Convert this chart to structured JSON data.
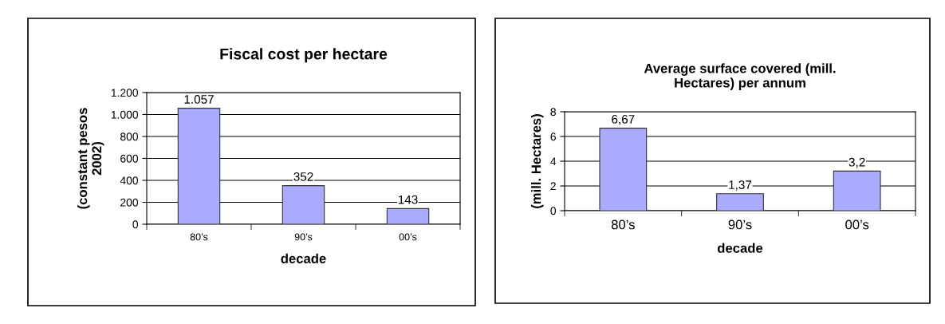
{
  "chart_data": [
    {
      "type": "bar",
      "title": "Fiscal cost per hectare",
      "xlabel": "decade",
      "ylabel": "(constant pesos\n2002)",
      "categories": [
        "80’s",
        "90’s",
        "00’s"
      ],
      "values": [
        1057,
        352,
        143
      ],
      "value_labels": [
        "1.057",
        "352",
        "143"
      ],
      "color": "#aaaaff",
      "ylim": [
        0,
        1200
      ],
      "yticks": [
        0,
        200,
        400,
        600,
        800,
        {
          "value": 1000,
          "label": "1.000"
        },
        {
          "value": 1200,
          "label": "1.200"
        }
      ],
      "grid": "y"
    },
    {
      "type": "bar",
      "title": "Average surface covered (mill.\nHectares) per annum",
      "xlabel": "decade",
      "ylabel": "(mill. Hectares)",
      "categories": [
        "80’s",
        "90’s",
        "00’s"
      ],
      "values": [
        6.67,
        1.37,
        3.2
      ],
      "value_labels": [
        "6,67",
        "1,37",
        "3,2"
      ],
      "color": "#aaaaff",
      "ylim": [
        0,
        8
      ],
      "yticks": [
        0,
        2,
        4,
        6,
        8
      ],
      "grid": "y"
    }
  ]
}
